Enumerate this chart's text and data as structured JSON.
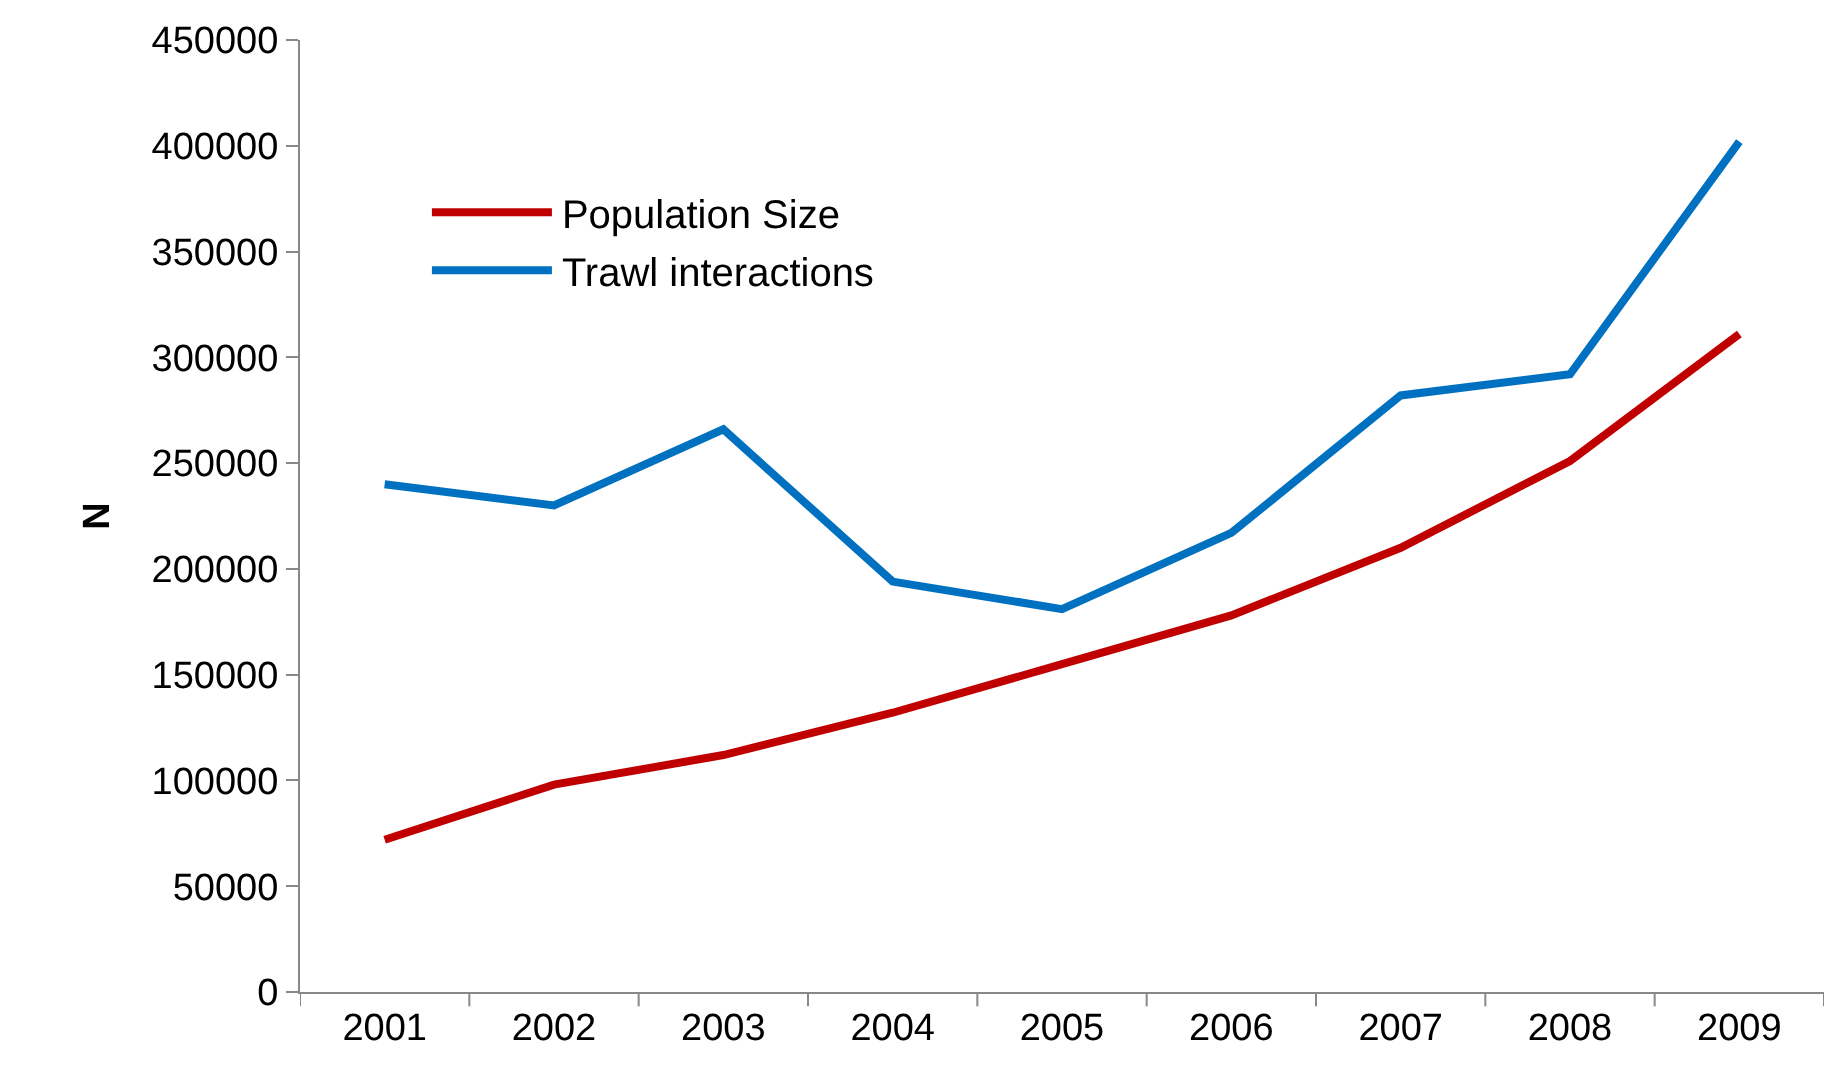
{
  "chart_data": {
    "type": "line",
    "ylabel": "N",
    "categories": [
      "2001",
      "2002",
      "2003",
      "2004",
      "2005",
      "2006",
      "2007",
      "2008",
      "2009"
    ],
    "series": [
      {
        "name": "Population Size",
        "color": "#c00000",
        "values": [
          72000,
          98000,
          112000,
          132000,
          155000,
          178000,
          210000,
          251000,
          311000
        ]
      },
      {
        "name": "Trawl interactions",
        "color": "#0070c0",
        "values": [
          240000,
          230000,
          266000,
          194000,
          181000,
          217000,
          282000,
          292000,
          402000
        ]
      }
    ],
    "ylim": [
      0,
      450000
    ],
    "yticks": [
      0,
      50000,
      100000,
      150000,
      200000,
      250000,
      300000,
      350000,
      400000,
      450000
    ],
    "legend": "top left",
    "marker": "none",
    "line_style": "solid"
  }
}
